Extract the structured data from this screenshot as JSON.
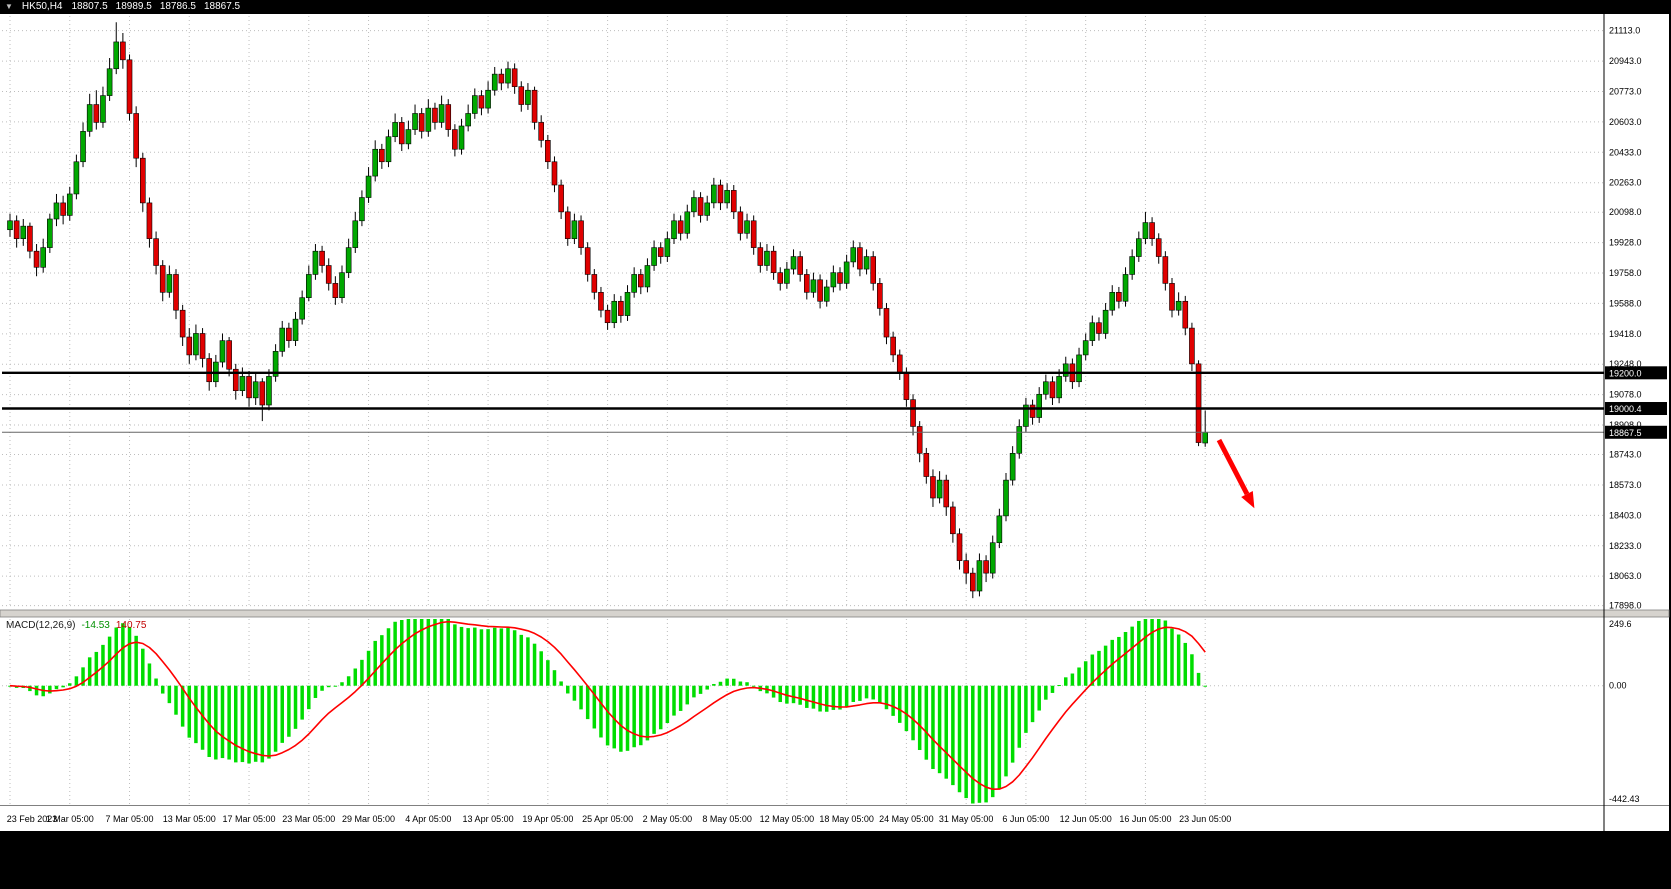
{
  "header": {
    "symbol": "HK50,H4",
    "open": "18807.5",
    "high": "18989.5",
    "low": "18786.5",
    "close": "18867.5"
  },
  "chart_data": {
    "type": "candlestick",
    "title": "HK50 H4 candlestick chart with MACD",
    "price_axis": {
      "labels": [
        "21113.0",
        "20943.0",
        "20773.0",
        "20603.0",
        "20433.0",
        "20263.0",
        "20098.0",
        "19928.0",
        "19758.0",
        "19588.0",
        "19418.0",
        "19248.0",
        "19078.0",
        "18908.0",
        "18743.0",
        "18573.0",
        "18403.0",
        "18233.0",
        "18063.0",
        "17898.0"
      ],
      "min": 17885,
      "max": 21195
    },
    "time_axis": {
      "labels": [
        "23 Feb 2023",
        "1 Mar 05:00",
        "7 Mar 05:00",
        "13 Mar 05:00",
        "17 Mar 05:00",
        "23 Mar 05:00",
        "29 Mar 05:00",
        "4 Apr 05:00",
        "13 Apr 05:00",
        "19 Apr 05:00",
        "25 Apr 05:00",
        "2 May 05:00",
        "8 May 05:00",
        "12 May 05:00",
        "18 May 05:00",
        "24 May 05:00",
        "31 May 05:00",
        "6 Jun 05:00",
        "12 Jun 05:00",
        "16 Jun 05:00",
        "23 Jun 05:00"
      ],
      "bar_indices": [
        0,
        9,
        18,
        27,
        36,
        45,
        54,
        63,
        72,
        81,
        90,
        99,
        108,
        117,
        126,
        135,
        144,
        153,
        162,
        171,
        180
      ]
    },
    "levels": [
      {
        "price": 19200.0,
        "label": "19200.0"
      },
      {
        "price": 19000.4,
        "label": "19000.4"
      }
    ],
    "current_price": {
      "price": 18867.5,
      "label": "18867.5"
    },
    "macd": {
      "label": "MACD(12,26,9)",
      "value": "-14.53",
      "signal_value": "140.75",
      "params": [
        12,
        26,
        9
      ],
      "axis_labels": [
        "249.6",
        "0.00",
        "-442.43"
      ],
      "range": {
        "max": 249.6,
        "min": -442.43
      }
    },
    "colors": {
      "up_candle": "#00a800",
      "down_candle": "#e00000",
      "wick": "#000000",
      "grid": "#bdbdbd",
      "level_line": "#000000",
      "current_price_line": "#666666",
      "macd_histogram": "#00dd00",
      "macd_signal": "#ff0000",
      "arrow": "#ff0000",
      "tag_bg": "#000000",
      "tag_text": "#ffffff"
    },
    "candles": [
      [
        20000,
        20090,
        19960,
        20050
      ],
      [
        20050,
        20080,
        19900,
        19950
      ],
      [
        19950,
        20060,
        19910,
        20020
      ],
      [
        20020,
        20040,
        19840,
        19880
      ],
      [
        19880,
        19920,
        19740,
        19790
      ],
      [
        19790,
        19950,
        19760,
        19900
      ],
      [
        19900,
        20090,
        19870,
        20060
      ],
      [
        20060,
        20200,
        20020,
        20150
      ],
      [
        20150,
        20190,
        20030,
        20080
      ],
      [
        20080,
        20240,
        20050,
        20200
      ],
      [
        20200,
        20420,
        20170,
        20380
      ],
      [
        20380,
        20600,
        20350,
        20550
      ],
      [
        20550,
        20760,
        20520,
        20700
      ],
      [
        20700,
        20780,
        20560,
        20600
      ],
      [
        20600,
        20800,
        20570,
        20750
      ],
      [
        20750,
        20960,
        20720,
        20900
      ],
      [
        20900,
        21160,
        20870,
        21050
      ],
      [
        21050,
        21100,
        20900,
        20950
      ],
      [
        20950,
        20980,
        20610,
        20650
      ],
      [
        20650,
        20690,
        20350,
        20400
      ],
      [
        20400,
        20430,
        20100,
        20150
      ],
      [
        20150,
        20180,
        19900,
        19950
      ],
      [
        19950,
        19990,
        19750,
        19800
      ],
      [
        19800,
        19830,
        19600,
        19650
      ],
      [
        19650,
        19800,
        19620,
        19750
      ],
      [
        19750,
        19780,
        19500,
        19550
      ],
      [
        19550,
        19580,
        19350,
        19400
      ],
      [
        19400,
        19450,
        19250,
        19300
      ],
      [
        19300,
        19470,
        19270,
        19420
      ],
      [
        19420,
        19450,
        19230,
        19280
      ],
      [
        19280,
        19310,
        19100,
        19150
      ],
      [
        19150,
        19300,
        19120,
        19260
      ],
      [
        19260,
        19420,
        19230,
        19380
      ],
      [
        19380,
        19400,
        19180,
        19220
      ],
      [
        19220,
        19250,
        19050,
        19100
      ],
      [
        19100,
        19230,
        19070,
        19180
      ],
      [
        19180,
        19210,
        19010,
        19060
      ],
      [
        19060,
        19200,
        19020,
        19150
      ],
      [
        19150,
        19170,
        18930,
        19020
      ],
      [
        19020,
        19220,
        18990,
        19180
      ],
      [
        19180,
        19360,
        19150,
        19320
      ],
      [
        19320,
        19490,
        19290,
        19450
      ],
      [
        19450,
        19480,
        19340,
        19380
      ],
      [
        19380,
        19540,
        19350,
        19500
      ],
      [
        19500,
        19660,
        19470,
        19620
      ],
      [
        19620,
        19800,
        19600,
        19750
      ],
      [
        19750,
        19920,
        19720,
        19880
      ],
      [
        19880,
        19910,
        19760,
        19800
      ],
      [
        19800,
        19840,
        19660,
        19700
      ],
      [
        19700,
        19740,
        19580,
        19620
      ],
      [
        19620,
        19800,
        19590,
        19760
      ],
      [
        19760,
        19950,
        19730,
        19900
      ],
      [
        19900,
        20100,
        19870,
        20050
      ],
      [
        20050,
        20220,
        20020,
        20180
      ],
      [
        20180,
        20350,
        20150,
        20300
      ],
      [
        20300,
        20500,
        20270,
        20450
      ],
      [
        20450,
        20480,
        20340,
        20380
      ],
      [
        20380,
        20560,
        20350,
        20520
      ],
      [
        20520,
        20650,
        20490,
        20600
      ],
      [
        20600,
        20630,
        20440,
        20480
      ],
      [
        20480,
        20610,
        20450,
        20560
      ],
      [
        20560,
        20700,
        20530,
        20650
      ],
      [
        20650,
        20680,
        20510,
        20550
      ],
      [
        20550,
        20730,
        20520,
        20680
      ],
      [
        20680,
        20710,
        20560,
        20600
      ],
      [
        20600,
        20750,
        20570,
        20700
      ],
      [
        20700,
        20730,
        20520,
        20560
      ],
      [
        20560,
        20590,
        20410,
        20450
      ],
      [
        20450,
        20620,
        20420,
        20580
      ],
      [
        20580,
        20700,
        20550,
        20650
      ],
      [
        20650,
        20790,
        20620,
        20750
      ],
      [
        20750,
        20780,
        20640,
        20680
      ],
      [
        20680,
        20830,
        20650,
        20780
      ],
      [
        20780,
        20910,
        20750,
        20870
      ],
      [
        20870,
        20900,
        20780,
        20820
      ],
      [
        20820,
        20940,
        20790,
        20900
      ],
      [
        20900,
        20930,
        20760,
        20800
      ],
      [
        20800,
        20830,
        20660,
        20700
      ],
      [
        20700,
        20820,
        20670,
        20780
      ],
      [
        20780,
        20800,
        20560,
        20600
      ],
      [
        20600,
        20640,
        20460,
        20500
      ],
      [
        20500,
        20530,
        20340,
        20380
      ],
      [
        20380,
        20410,
        20210,
        20250
      ],
      [
        20250,
        20280,
        20060,
        20100
      ],
      [
        20100,
        20130,
        19910,
        19950
      ],
      [
        19950,
        20090,
        19920,
        20050
      ],
      [
        20050,
        20080,
        19860,
        19900
      ],
      [
        19900,
        19930,
        19710,
        19750
      ],
      [
        19750,
        19780,
        19610,
        19650
      ],
      [
        19650,
        19680,
        19510,
        19550
      ],
      [
        19550,
        19580,
        19440,
        19480
      ],
      [
        19480,
        19640,
        19450,
        19600
      ],
      [
        19600,
        19630,
        19480,
        19520
      ],
      [
        19520,
        19690,
        19490,
        19650
      ],
      [
        19650,
        19790,
        19620,
        19750
      ],
      [
        19750,
        19780,
        19640,
        19680
      ],
      [
        19680,
        19840,
        19650,
        19800
      ],
      [
        19800,
        19940,
        19770,
        19900
      ],
      [
        19900,
        19930,
        19810,
        19850
      ],
      [
        19850,
        19990,
        19820,
        19950
      ],
      [
        19950,
        20090,
        19920,
        20050
      ],
      [
        20050,
        20080,
        19940,
        19980
      ],
      [
        19980,
        20140,
        19950,
        20100
      ],
      [
        20100,
        20220,
        20070,
        20180
      ],
      [
        20180,
        20210,
        20040,
        20080
      ],
      [
        20080,
        20190,
        20050,
        20150
      ],
      [
        20150,
        20290,
        20120,
        20250
      ],
      [
        20250,
        20280,
        20110,
        20150
      ],
      [
        20150,
        20260,
        20120,
        20220
      ],
      [
        20220,
        20250,
        20060,
        20100
      ],
      [
        20100,
        20130,
        19940,
        19980
      ],
      [
        19980,
        20090,
        19950,
        20050
      ],
      [
        20050,
        20080,
        19860,
        19900
      ],
      [
        19900,
        19930,
        19760,
        19800
      ],
      [
        19800,
        19920,
        19770,
        19880
      ],
      [
        19880,
        19910,
        19720,
        19760
      ],
      [
        19760,
        19790,
        19660,
        19700
      ],
      [
        19700,
        19820,
        19670,
        19780
      ],
      [
        19780,
        19890,
        19750,
        19850
      ],
      [
        19850,
        19880,
        19710,
        19750
      ],
      [
        19750,
        19780,
        19610,
        19650
      ],
      [
        19650,
        19760,
        19620,
        19720
      ],
      [
        19720,
        19750,
        19560,
        19600
      ],
      [
        19600,
        19720,
        19570,
        19680
      ],
      [
        19680,
        19800,
        19650,
        19760
      ],
      [
        19760,
        19790,
        19660,
        19700
      ],
      [
        19700,
        19860,
        19670,
        19820
      ],
      [
        19820,
        19940,
        19790,
        19900
      ],
      [
        19900,
        19930,
        19740,
        19780
      ],
      [
        19780,
        19890,
        19750,
        19850
      ],
      [
        19850,
        19880,
        19660,
        19700
      ],
      [
        19700,
        19730,
        19520,
        19560
      ],
      [
        19560,
        19590,
        19360,
        19400
      ],
      [
        19400,
        19430,
        19260,
        19300
      ],
      [
        19300,
        19330,
        19160,
        19200
      ],
      [
        19200,
        19230,
        19010,
        19050
      ],
      [
        19050,
        19080,
        18850,
        18900
      ],
      [
        18900,
        18930,
        18700,
        18750
      ],
      [
        18750,
        18780,
        18580,
        18620
      ],
      [
        18620,
        18660,
        18450,
        18500
      ],
      [
        18500,
        18650,
        18470,
        18600
      ],
      [
        18600,
        18630,
        18400,
        18450
      ],
      [
        18450,
        18480,
        18250,
        18300
      ],
      [
        18300,
        18330,
        18100,
        18150
      ],
      [
        18150,
        18190,
        18020,
        18080
      ],
      [
        18080,
        18110,
        17940,
        17980
      ],
      [
        17980,
        18190,
        17950,
        18150
      ],
      [
        18150,
        18180,
        18030,
        18080
      ],
      [
        18080,
        18290,
        18050,
        18250
      ],
      [
        18250,
        18440,
        18220,
        18400
      ],
      [
        18400,
        18640,
        18370,
        18600
      ],
      [
        18600,
        18790,
        18570,
        18750
      ],
      [
        18750,
        18940,
        18720,
        18900
      ],
      [
        18900,
        19060,
        18870,
        19020
      ],
      [
        19020,
        19050,
        18910,
        18950
      ],
      [
        18950,
        19120,
        18920,
        19080
      ],
      [
        19080,
        19190,
        19050,
        19150
      ],
      [
        19150,
        19180,
        19020,
        19060
      ],
      [
        19060,
        19220,
        19030,
        19180
      ],
      [
        19180,
        19290,
        19150,
        19250
      ],
      [
        19250,
        19280,
        19110,
        19150
      ],
      [
        19150,
        19340,
        19120,
        19300
      ],
      [
        19300,
        19420,
        19270,
        19380
      ],
      [
        19380,
        19520,
        19350,
        19480
      ],
      [
        19480,
        19510,
        19380,
        19420
      ],
      [
        19420,
        19590,
        19390,
        19550
      ],
      [
        19550,
        19690,
        19520,
        19650
      ],
      [
        19650,
        19680,
        19560,
        19600
      ],
      [
        19600,
        19790,
        19570,
        19750
      ],
      [
        19750,
        19890,
        19720,
        19850
      ],
      [
        19850,
        19990,
        19820,
        19950
      ],
      [
        19950,
        20100,
        19920,
        20040
      ],
      [
        20040,
        20070,
        19910,
        19950
      ],
      [
        19950,
        19980,
        19810,
        19850
      ],
      [
        19850,
        19880,
        19660,
        19700
      ],
      [
        19700,
        19730,
        19510,
        19550
      ],
      [
        19550,
        19650,
        19520,
        19600
      ],
      [
        19600,
        19630,
        19410,
        19450
      ],
      [
        19450,
        19480,
        19210,
        19250
      ],
      [
        19250,
        19270,
        18790,
        18810
      ],
      [
        18807.5,
        18989.5,
        18786.5,
        18867.5
      ]
    ]
  }
}
